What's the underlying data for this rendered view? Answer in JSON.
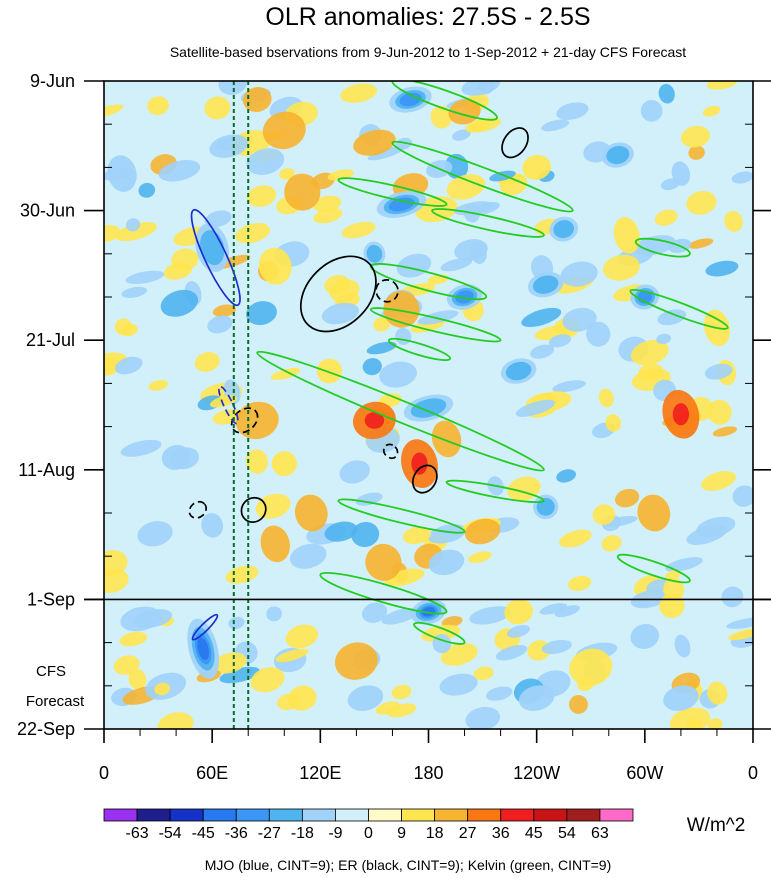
{
  "chart_data": {
    "type": "heatmap",
    "title": "OLR anomalies: 27.5S - 2.5S",
    "subtitle": "Satellite-based bservations from 9-Jun-2012 to 1-Sep-2012 + 21-day CFS Forecast",
    "x_tick_labels": [
      "0",
      "60E",
      "120E",
      "180",
      "120W",
      "60W",
      "0"
    ],
    "x_tick_lon": [
      0,
      60,
      120,
      180,
      240,
      300,
      360
    ],
    "xlim": [
      0,
      360
    ],
    "y_tick_labels": [
      "9-Jun",
      "30-Jun",
      "21-Jul",
      "11-Aug",
      "1-Sep",
      "22-Sep"
    ],
    "y_tick_day": [
      0,
      21,
      42,
      63,
      84,
      105
    ],
    "ylim": [
      0,
      105
    ],
    "observation_end_day": 84,
    "forecast_label": [
      "CFS",
      "Forecast"
    ],
    "reference_lon_dotted": [
      72,
      80
    ],
    "colorbar": {
      "labels": [
        "-63",
        "-54",
        "-45",
        "-36",
        "-27",
        "-18",
        "-9",
        "0",
        "9",
        "18",
        "27",
        "36",
        "45",
        "54",
        "63"
      ],
      "colors": [
        "#9a30f0",
        "#1e1e8c",
        "#1432c8",
        "#2878f0",
        "#3c96f5",
        "#50b4f0",
        "#a0d2fa",
        "#d2f0fa",
        "#fffbc8",
        "#ffe650",
        "#f5b432",
        "#fa7814",
        "#f01e1e",
        "#c81414",
        "#a01e1e",
        "#ff69c8"
      ],
      "units": "W/m^2"
    },
    "footer": "MJO (blue, CINT=9); ER (black, CINT=9); Kelvin (green, CINT=9)",
    "positive_patches": [
      {
        "lon": 30,
        "day": 4,
        "rl": 6,
        "rd": 1.5,
        "v": 10
      },
      {
        "lon": 85,
        "day": 3,
        "rl": 8,
        "rd": 2,
        "v": 20
      },
      {
        "lon": 100,
        "day": 8,
        "rl": 12,
        "rd": 3,
        "v": 24
      },
      {
        "lon": 110,
        "day": 18,
        "rl": 10,
        "rd": 3,
        "v": 18
      },
      {
        "lon": 95,
        "day": 30,
        "rl": 9,
        "rd": 3,
        "v": 16
      },
      {
        "lon": 150,
        "day": 10,
        "rl": 12,
        "rd": 2,
        "v": 20
      },
      {
        "lon": 170,
        "day": 17,
        "rl": 10,
        "rd": 2,
        "v": 22
      },
      {
        "lon": 200,
        "day": 5,
        "rl": 9,
        "rd": 2,
        "v": 18
      },
      {
        "lon": 240,
        "day": 14,
        "rl": 8,
        "rd": 2,
        "v": 16
      },
      {
        "lon": 125,
        "day": 47,
        "rl": 7,
        "rd": 2,
        "v": 14
      },
      {
        "lon": 165,
        "day": 37,
        "rl": 10,
        "rd": 3,
        "v": 26
      },
      {
        "lon": 150,
        "day": 55,
        "rl": 12,
        "rd": 3,
        "v": 28
      },
      {
        "lon": 175,
        "day": 62,
        "rl": 10,
        "rd": 4,
        "v": 30
      },
      {
        "lon": 190,
        "day": 58,
        "rl": 8,
        "rd": 3,
        "v": 22
      },
      {
        "lon": 85,
        "day": 55,
        "rl": 12,
        "rd": 3,
        "v": 24
      },
      {
        "lon": 100,
        "day": 62,
        "rl": 7,
        "rd": 2,
        "v": 16
      },
      {
        "lon": 95,
        "day": 75,
        "rl": 8,
        "rd": 3,
        "v": 18
      },
      {
        "lon": 115,
        "day": 70,
        "rl": 9,
        "rd": 3,
        "v": 20
      },
      {
        "lon": 155,
        "day": 78,
        "rl": 10,
        "rd": 3,
        "v": 24
      },
      {
        "lon": 180,
        "day": 77,
        "rl": 8,
        "rd": 2,
        "v": 20
      },
      {
        "lon": 210,
        "day": 73,
        "rl": 10,
        "rd": 2,
        "v": 22
      },
      {
        "lon": 230,
        "day": 86,
        "rl": 8,
        "rd": 2,
        "v": 16
      },
      {
        "lon": 320,
        "day": 54,
        "rl": 10,
        "rd": 4,
        "v": 30
      },
      {
        "lon": 305,
        "day": 70,
        "rl": 9,
        "rd": 3,
        "v": 18
      },
      {
        "lon": 315,
        "day": 85,
        "rl": 7,
        "rd": 2,
        "v": 14
      },
      {
        "lon": 140,
        "day": 94,
        "rl": 12,
        "rd": 3,
        "v": 18
      },
      {
        "lon": 270,
        "day": 95,
        "rl": 12,
        "rd": 3,
        "v": 12
      },
      {
        "lon": 110,
        "day": 100,
        "rl": 8,
        "rd": 2,
        "v": 12
      },
      {
        "lon": 290,
        "day": 25,
        "rl": 7,
        "rd": 3,
        "v": 14
      },
      {
        "lon": 340,
        "day": 40,
        "rl": 7,
        "rd": 3,
        "v": 14
      }
    ],
    "negative_patches": [
      {
        "lon": 10,
        "day": 15,
        "rl": 8,
        "rd": 3,
        "v": -14
      },
      {
        "lon": 60,
        "day": 27,
        "rl": 9,
        "rd": 4,
        "v": -24
      },
      {
        "lon": 170,
        "day": 3,
        "rl": 12,
        "rd": 2,
        "v": -30
      },
      {
        "lon": 165,
        "day": 20,
        "rl": 14,
        "rd": 2,
        "v": -34
      },
      {
        "lon": 150,
        "day": 28,
        "rl": 6,
        "rd": 2,
        "v": -22
      },
      {
        "lon": 200,
        "day": 35,
        "rl": 10,
        "rd": 2,
        "v": -30
      },
      {
        "lon": 245,
        "day": 33,
        "rl": 10,
        "rd": 2,
        "v": -20
      },
      {
        "lon": 300,
        "day": 35,
        "rl": 8,
        "rd": 2,
        "v": -28
      },
      {
        "lon": 230,
        "day": 47,
        "rl": 10,
        "rd": 2,
        "v": -18
      },
      {
        "lon": 180,
        "day": 53,
        "rl": 14,
        "rd": 2,
        "v": -24
      },
      {
        "lon": 255,
        "day": 24,
        "rl": 8,
        "rd": 2,
        "v": -22
      },
      {
        "lon": 285,
        "day": 12,
        "rl": 9,
        "rd": 2,
        "v": -24
      },
      {
        "lon": 40,
        "day": 61,
        "rl": 8,
        "rd": 2,
        "v": -16
      },
      {
        "lon": 190,
        "day": 78,
        "rl": 10,
        "rd": 2,
        "v": -16
      },
      {
        "lon": 180,
        "day": 86,
        "rl": 10,
        "rd": 2,
        "v": -36
      },
      {
        "lon": 55,
        "day": 92,
        "rl": 8,
        "rd": 5,
        "v": -36
      },
      {
        "lon": 245,
        "day": 69,
        "rl": 7,
        "rd": 2,
        "v": -18
      },
      {
        "lon": 320,
        "day": 15,
        "rl": 5,
        "rd": 2,
        "v": -16
      },
      {
        "lon": 145,
        "day": 100,
        "rl": 10,
        "rd": 2,
        "v": -12
      },
      {
        "lon": 300,
        "day": 90,
        "rl": 8,
        "rd": 2,
        "v": -12
      },
      {
        "lon": 60,
        "day": 72,
        "rl": 6,
        "rd": 2,
        "v": -12
      },
      {
        "lon": 320,
        "day": 100,
        "rl": 10,
        "rd": 2,
        "v": -10
      },
      {
        "lon": 240,
        "day": 100,
        "rl": 10,
        "rd": 2,
        "v": -10
      }
    ],
    "mjo_contours": [
      {
        "cx_lon": 62,
        "cy_day": 28.6,
        "rx_lon": 6,
        "ry_day": 8.5,
        "rot": -25,
        "dashed": false
      },
      {
        "cx_lon": 69,
        "cy_day": 52.5,
        "rx_lon": 2.5,
        "ry_day": 3.3,
        "rot": -25,
        "dashed": true
      },
      {
        "cx_lon": 56,
        "cy_day": 88.5,
        "rx_lon": 2,
        "ry_day": 2.8,
        "rot": 45,
        "dashed": false
      }
    ],
    "er_contours": [
      {
        "cx_lon": 130,
        "cy_day": 34.5,
        "rx_lon": 24,
        "ry_day": 5,
        "rot": -45,
        "dashed": false
      },
      {
        "cx_lon": 157,
        "cy_day": 34,
        "rx_lon": 6,
        "ry_day": 1.8,
        "rot": -45,
        "dashed": true
      },
      {
        "cx_lon": 78,
        "cy_day": 55,
        "rx_lon": 8,
        "ry_day": 1.7,
        "rot": -40,
        "dashed": true
      },
      {
        "cx_lon": 159,
        "cy_day": 60,
        "rx_lon": 3.5,
        "ry_day": 1.2,
        "rot": -45,
        "dashed": true
      },
      {
        "cx_lon": 178,
        "cy_day": 64.5,
        "rx_lon": 8,
        "ry_day": 1.8,
        "rot": -60,
        "dashed": false
      },
      {
        "cx_lon": 52,
        "cy_day": 69.5,
        "rx_lon": 5,
        "ry_day": 1.2,
        "rot": -40,
        "dashed": true
      },
      {
        "cx_lon": 83,
        "cy_day": 69.5,
        "rx_lon": 7,
        "ry_day": 1.9,
        "rot": -45,
        "dashed": false
      },
      {
        "cx_lon": 228,
        "cy_day": 10,
        "rx_lon": 9,
        "ry_day": 1.8,
        "rot": -55,
        "dashed": false
      }
    ],
    "kelvin_contours": [
      {
        "from": [
          160,
          0
        ],
        "to": [
          218,
          6
        ],
        "w": 1.6
      },
      {
        "from": [
          160,
          10
        ],
        "to": [
          260,
          21
        ],
        "w": 1.6
      },
      {
        "from": [
          130,
          16
        ],
        "to": [
          190,
          20
        ],
        "w": 1.2
      },
      {
        "from": [
          182,
          21
        ],
        "to": [
          244,
          25
        ],
        "w": 1.2
      },
      {
        "from": [
          148,
          30
        ],
        "to": [
          212,
          35
        ],
        "w": 1.6
      },
      {
        "from": [
          148,
          37
        ],
        "to": [
          220,
          42
        ],
        "w": 1.2
      },
      {
        "from": [
          158,
          42
        ],
        "to": [
          192,
          45
        ],
        "w": 1.0
      },
      {
        "from": [
          295,
          26
        ],
        "to": [
          325,
          28
        ],
        "w": 1.2
      },
      {
        "from": [
          292,
          34
        ],
        "to": [
          346,
          40
        ],
        "w": 1.2
      },
      {
        "from": [
          85,
          44
        ],
        "to": [
          244,
          63
        ],
        "w": 1.9
      },
      {
        "from": [
          130,
          68
        ],
        "to": [
          200,
          73
        ],
        "w": 1.2
      },
      {
        "from": [
          190,
          65
        ],
        "to": [
          244,
          68
        ],
        "w": 1.0
      },
      {
        "from": [
          285,
          77
        ],
        "to": [
          325,
          81
        ],
        "w": 1.2
      },
      {
        "from": [
          120,
          80
        ],
        "to": [
          190,
          86
        ],
        "w": 1.6
      },
      {
        "from": [
          172,
          88
        ],
        "to": [
          200,
          91
        ],
        "w": 1.0
      }
    ]
  }
}
